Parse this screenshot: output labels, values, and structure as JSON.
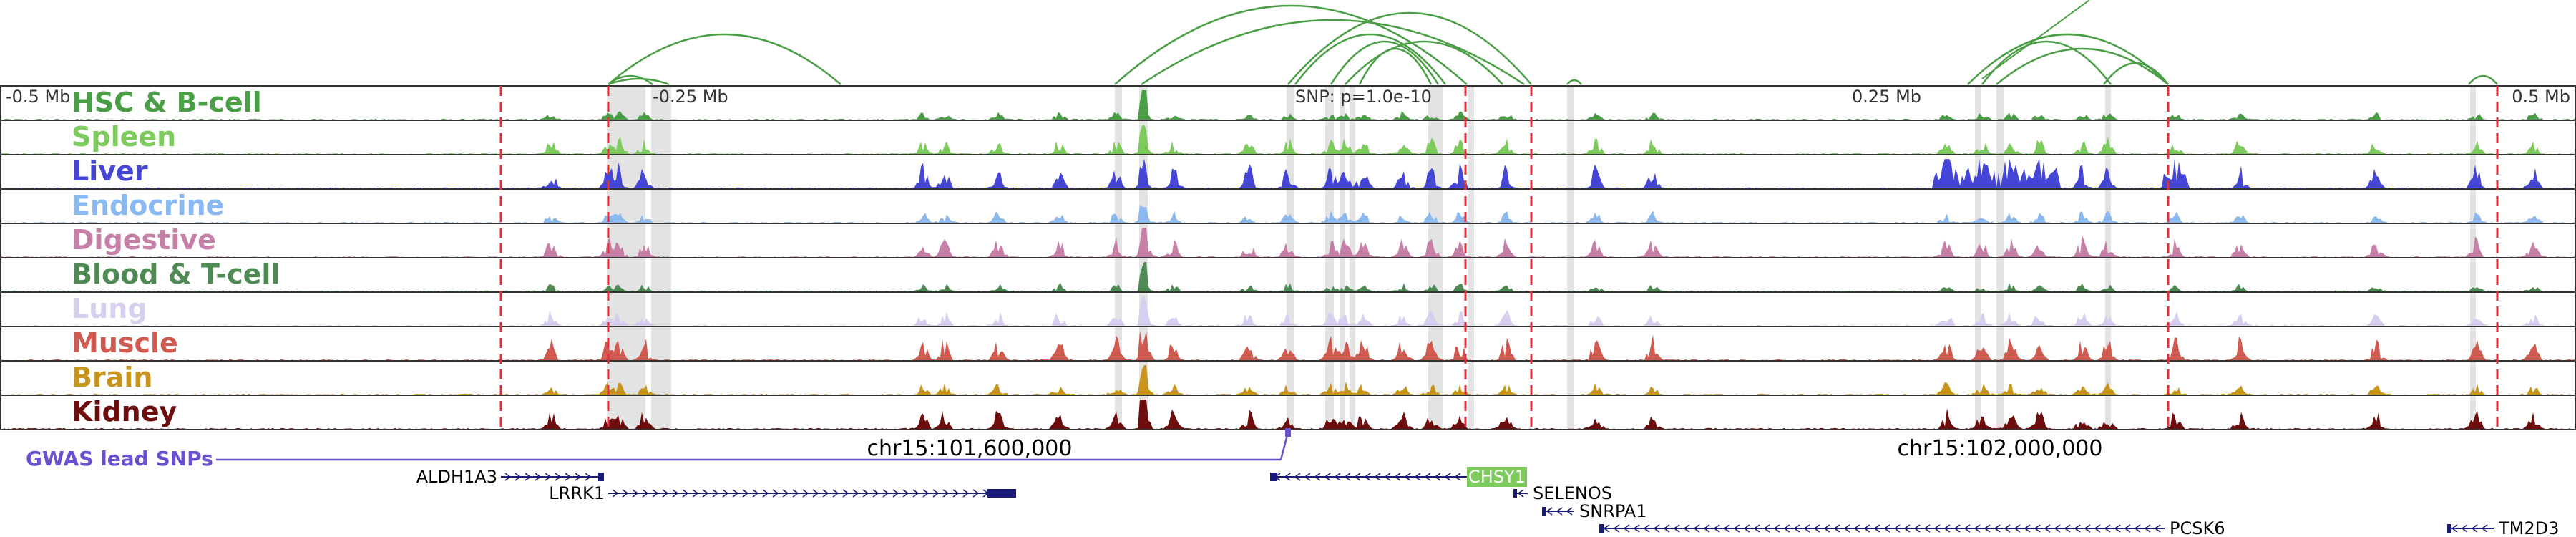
{
  "ruler": {
    "left_label": "-0.5 Mb",
    "mid_left_label": "-0.25 Mb",
    "snp_label": "SNP: p=1.0e-10",
    "mid_right_label": "0.25 Mb",
    "right_label": "0.5 Mb"
  },
  "tracks": [
    {
      "name": "HSC & B-cell",
      "color": "#4a9e45"
    },
    {
      "name": "Spleen",
      "color": "#7ccb5c"
    },
    {
      "name": "Liver",
      "color": "#4545d6"
    },
    {
      "name": "Endocrine",
      "color": "#8ab8f0"
    },
    {
      "name": "Digestive",
      "color": "#c680a8"
    },
    {
      "name": "Blood & T-cell",
      "color": "#4f8a55"
    },
    {
      "name": "Lung",
      "color": "#d8cff0"
    },
    {
      "name": "Muscle",
      "color": "#d05a4f"
    },
    {
      "name": "Brain",
      "color": "#c8941e"
    },
    {
      "name": "Kidney",
      "color": "#6e0d0d"
    }
  ],
  "coords": {
    "left": "chr15:101,600,000",
    "right": "chr15:102,000,000"
  },
  "gwas": {
    "label": "GWAS lead SNPs",
    "color": "#6a4fcf"
  },
  "genes": [
    {
      "name": "ALDH1A3",
      "highlight": false
    },
    {
      "name": "LRRK1",
      "highlight": false
    },
    {
      "name": "CHSY1",
      "highlight": true
    },
    {
      "name": "SELENOS",
      "highlight": false
    },
    {
      "name": "SNRPA1",
      "highlight": false
    },
    {
      "name": "PCSK6",
      "highlight": false
    },
    {
      "name": "TM2D3",
      "highlight": false
    }
  ],
  "colors": {
    "gene_body": "#1a1a7a",
    "highlight_gene": "#7ccb5c",
    "loop_arc": "#4a9e45",
    "dashed_marker": "#e0303a",
    "highlight_band": "#d9d9d9"
  }
}
